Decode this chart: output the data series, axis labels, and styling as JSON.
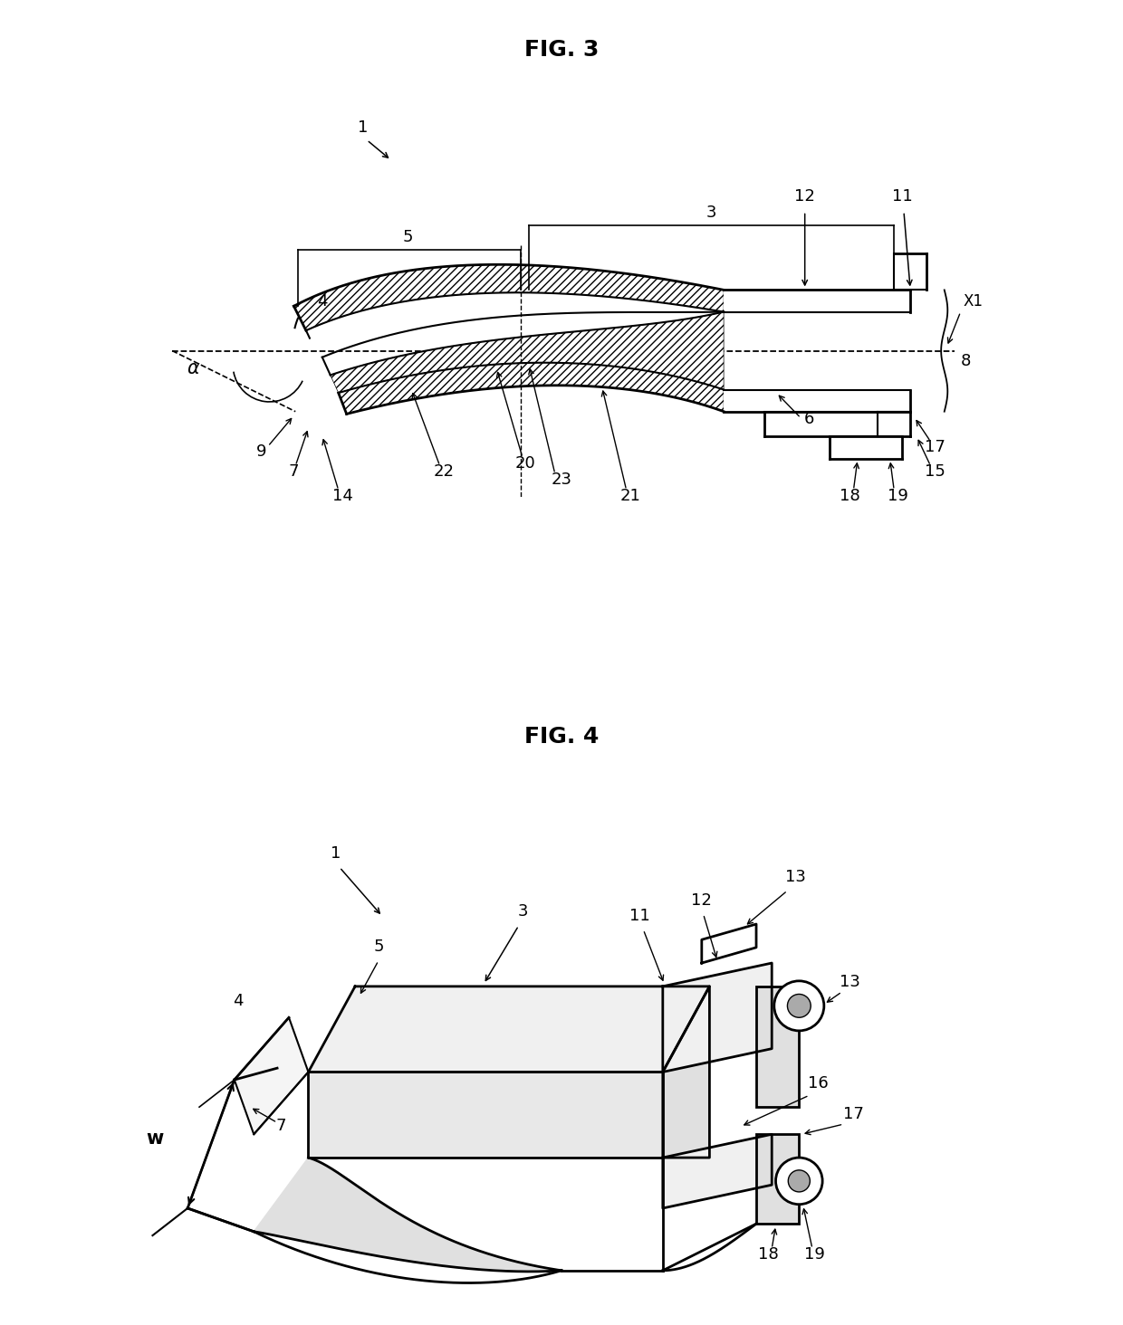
{
  "fig3_title": "FIG. 3",
  "fig4_title": "FIG. 4",
  "background_color": "#ffffff",
  "line_color": "#000000",
  "hatch_color": "#000000",
  "title_fontsize": 18,
  "label_fontsize": 14,
  "annotation_fontsize": 13
}
